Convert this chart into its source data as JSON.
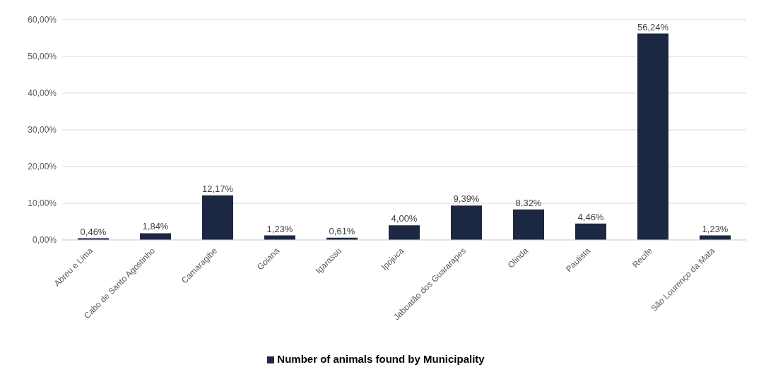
{
  "chart_data": {
    "type": "bar",
    "categories": [
      "Abreu e Lima",
      "Cabo de Santo Agostinho",
      "Camaragibe",
      "Goiana",
      "Igarassu",
      "Ipojuca",
      "Jaboatão dos Guararapes",
      "Olinda",
      "Paulista",
      "Recife",
      "São Lourenço da Mata"
    ],
    "series": [
      {
        "name": "Number of animals found by Municipality",
        "color": "#1c2841",
        "values": [
          0.46,
          1.84,
          12.17,
          1.23,
          0.61,
          4.0,
          9.39,
          8.32,
          4.46,
          56.24,
          1.23
        ],
        "value_labels": [
          "0,46%",
          "1,84%",
          "12,17%",
          "1,23%",
          "0,61%",
          "4,00%",
          "9,39%",
          "8,32%",
          "4,46%",
          "56,24%",
          "1,23%"
        ]
      }
    ],
    "ylim": [
      0,
      60
    ],
    "yticks": [
      {
        "value": 0,
        "label": "0,00%"
      },
      {
        "value": 10,
        "label": "10,00%"
      },
      {
        "value": 20,
        "label": "20,00%"
      },
      {
        "value": 30,
        "label": "30,00%"
      },
      {
        "value": 40,
        "label": "40,00%"
      },
      {
        "value": 50,
        "label": "50,00%"
      },
      {
        "value": 60,
        "label": "60,00%"
      }
    ],
    "grid": "y",
    "legend": "bottom"
  }
}
